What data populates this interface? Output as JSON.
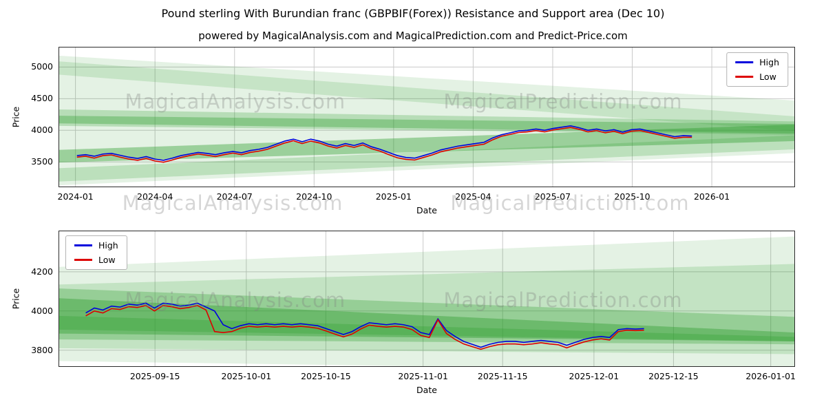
{
  "page": {
    "title": "Pound sterling With Burundian franc (GBPBIF(Forex)) Resistance and Support area (Dec 10)",
    "subtitle": "powered by MagicalAnalysis.com and MagicalPrediction.com and Predict-Price.com",
    "watermark_left": "MagicalAnalysis.com",
    "watermark_right": "MagicalPrediction.com"
  },
  "chart_data": [
    {
      "type": "line",
      "xlabel": "Date",
      "ylabel": "Price",
      "ylim": [
        3100,
        5320
      ],
      "yticks": [
        3500,
        4000,
        4500,
        5000
      ],
      "xticks": [
        {
          "label": "2024-01",
          "f": 0.023
        },
        {
          "label": "2024-04",
          "f": 0.131
        },
        {
          "label": "2024-07",
          "f": 0.239
        },
        {
          "label": "2024-10",
          "f": 0.347
        },
        {
          "label": "2025-01",
          "f": 0.455
        },
        {
          "label": "2025-04",
          "f": 0.563
        },
        {
          "label": "2025-07",
          "f": 0.671
        },
        {
          "label": "2025-10",
          "f": 0.779
        },
        {
          "label": "2026-01",
          "f": 0.887
        }
      ],
      "grid": true,
      "legend": {
        "position": "top-right"
      },
      "band_color": "#2e9e2e",
      "bands": [
        {
          "opacity": 0.13,
          "points": [
            [
              0,
              5180
            ],
            [
              1,
              4470
            ],
            [
              1,
              3640
            ],
            [
              0,
              3130
            ]
          ]
        },
        {
          "opacity": 0.16,
          "points": [
            [
              0,
              5090
            ],
            [
              1,
              4220
            ],
            [
              1,
              3990
            ],
            [
              0,
              4880
            ]
          ]
        },
        {
          "opacity": 0.25,
          "points": [
            [
              0,
              4330
            ],
            [
              1,
              4140
            ],
            [
              1,
              3930
            ],
            [
              0,
              4070
            ]
          ]
        },
        {
          "opacity": 0.35,
          "points": [
            [
              0,
              4230
            ],
            [
              1,
              4100
            ],
            [
              1,
              3950
            ],
            [
              0,
              4110
            ]
          ]
        },
        {
          "opacity": 0.4,
          "points": [
            [
              0,
              3690
            ],
            [
              1,
              4090
            ],
            [
              1,
              3830
            ],
            [
              0,
              3490
            ]
          ]
        },
        {
          "opacity": 0.22,
          "points": [
            [
              0,
              3400
            ],
            [
              1,
              3920
            ],
            [
              1,
              3700
            ],
            [
              0,
              3190
            ]
          ]
        }
      ],
      "series": [
        {
          "name": "High",
          "color": "#0000dd",
          "x_start": 0.025,
          "x_end": 0.86,
          "values": [
            3600,
            3615,
            3590,
            3625,
            3635,
            3605,
            3575,
            3555,
            3585,
            3545,
            3525,
            3560,
            3600,
            3625,
            3650,
            3635,
            3615,
            3645,
            3665,
            3645,
            3680,
            3700,
            3730,
            3780,
            3830,
            3860,
            3820,
            3860,
            3830,
            3780,
            3750,
            3790,
            3760,
            3800,
            3740,
            3700,
            3650,
            3600,
            3570,
            3560,
            3600,
            3640,
            3690,
            3720,
            3750,
            3770,
            3790,
            3810,
            3880,
            3930,
            3960,
            3990,
            4000,
            4020,
            4000,
            4030,
            4050,
            4070,
            4040,
            4000,
            4020,
            3990,
            4010,
            3970,
            4010,
            4020,
            3990,
            3960,
            3930,
            3900,
            3915,
            3910
          ]
        },
        {
          "name": "Low",
          "color": "#dd0000",
          "x_start": 0.025,
          "x_end": 0.86,
          "values": [
            3575,
            3590,
            3560,
            3600,
            3610,
            3575,
            3545,
            3525,
            3555,
            3515,
            3495,
            3530,
            3570,
            3600,
            3625,
            3605,
            3585,
            3615,
            3640,
            3615,
            3650,
            3670,
            3700,
            3750,
            3800,
            3835,
            3790,
            3830,
            3800,
            3750,
            3720,
            3760,
            3730,
            3770,
            3710,
            3670,
            3615,
            3565,
            3540,
            3530,
            3570,
            3610,
            3660,
            3690,
            3720,
            3740,
            3760,
            3780,
            3850,
            3905,
            3935,
            3965,
            3975,
            3995,
            3975,
            4005,
            4025,
            4045,
            4015,
            3975,
            3995,
            3960,
            3985,
            3945,
            3985,
            3995,
            3965,
            3935,
            3905,
            3875,
            3890,
            3890
          ]
        }
      ]
    },
    {
      "type": "line",
      "xlabel": "Date",
      "ylabel": "Price",
      "ylim": [
        3715,
        4410
      ],
      "yticks": [
        3800,
        4000,
        4200
      ],
      "xticks": [
        {
          "label": "2025-09-15",
          "f": 0.131
        },
        {
          "label": "2025-10-01",
          "f": 0.255
        },
        {
          "label": "2025-10-15",
          "f": 0.363
        },
        {
          "label": "2025-11-01",
          "f": 0.495
        },
        {
          "label": "2025-11-15",
          "f": 0.603
        },
        {
          "label": "2025-12-01",
          "f": 0.727
        },
        {
          "label": "2025-12-15",
          "f": 0.835
        },
        {
          "label": "2026-01-01",
          "f": 0.967
        }
      ],
      "grid": true,
      "legend": {
        "position": "top-left"
      },
      "band_color": "#2e9e2e",
      "bands": [
        {
          "opacity": 0.13,
          "points": [
            [
              0,
              4225
            ],
            [
              1,
              4380
            ],
            [
              1,
              3690
            ],
            [
              0,
              3745
            ]
          ]
        },
        {
          "opacity": 0.18,
          "points": [
            [
              0,
              4135
            ],
            [
              1,
              4240
            ],
            [
              1,
              3780
            ],
            [
              0,
              3810
            ]
          ]
        },
        {
          "opacity": 0.3,
          "points": [
            [
              0,
              4115
            ],
            [
              1,
              3970
            ],
            [
              1,
              3830
            ],
            [
              0,
              3855
            ]
          ]
        },
        {
          "opacity": 0.4,
          "points": [
            [
              0,
              4065
            ],
            [
              1,
              3890
            ],
            [
              1,
              3845
            ],
            [
              0,
              3885
            ]
          ]
        },
        {
          "opacity": 0.3,
          "points": [
            [
              0,
              3975
            ],
            [
              1,
              3868
            ],
            [
              1,
              3845
            ],
            [
              0,
              3905
            ]
          ]
        }
      ],
      "series": [
        {
          "name": "High",
          "color": "#0000dd",
          "x_start": 0.037,
          "x_end": 0.795,
          "values": [
            3990,
            4015,
            4005,
            4025,
            4020,
            4035,
            4030,
            4040,
            4015,
            4040,
            4035,
            4025,
            4030,
            4040,
            4020,
            4000,
            3930,
            3910,
            3925,
            3935,
            3930,
            3935,
            3930,
            3935,
            3930,
            3935,
            3930,
            3925,
            3910,
            3895,
            3880,
            3895,
            3920,
            3940,
            3935,
            3930,
            3935,
            3930,
            3920,
            3890,
            3880,
            3960,
            3900,
            3870,
            3845,
            3830,
            3815,
            3830,
            3840,
            3845,
            3845,
            3840,
            3845,
            3850,
            3845,
            3840,
            3825,
            3840,
            3855,
            3865,
            3870,
            3865,
            3905,
            3910,
            3908,
            3910
          ]
        },
        {
          "name": "Low",
          "color": "#dd0000",
          "x_start": 0.037,
          "x_end": 0.795,
          "values": [
            3975,
            4000,
            3990,
            4012,
            4008,
            4022,
            4018,
            4028,
            4000,
            4028,
            4022,
            4012,
            4018,
            4028,
            4005,
            3895,
            3890,
            3895,
            3912,
            3922,
            3918,
            3922,
            3918,
            3922,
            3918,
            3922,
            3918,
            3912,
            3898,
            3882,
            3868,
            3882,
            3908,
            3928,
            3922,
            3918,
            3922,
            3918,
            3905,
            3875,
            3865,
            3955,
            3885,
            3855,
            3832,
            3818,
            3805,
            3818,
            3828,
            3832,
            3832,
            3828,
            3832,
            3838,
            3832,
            3828,
            3812,
            3828,
            3842,
            3852,
            3858,
            3852,
            3895,
            3902,
            3900,
            3902
          ]
        }
      ]
    }
  ]
}
